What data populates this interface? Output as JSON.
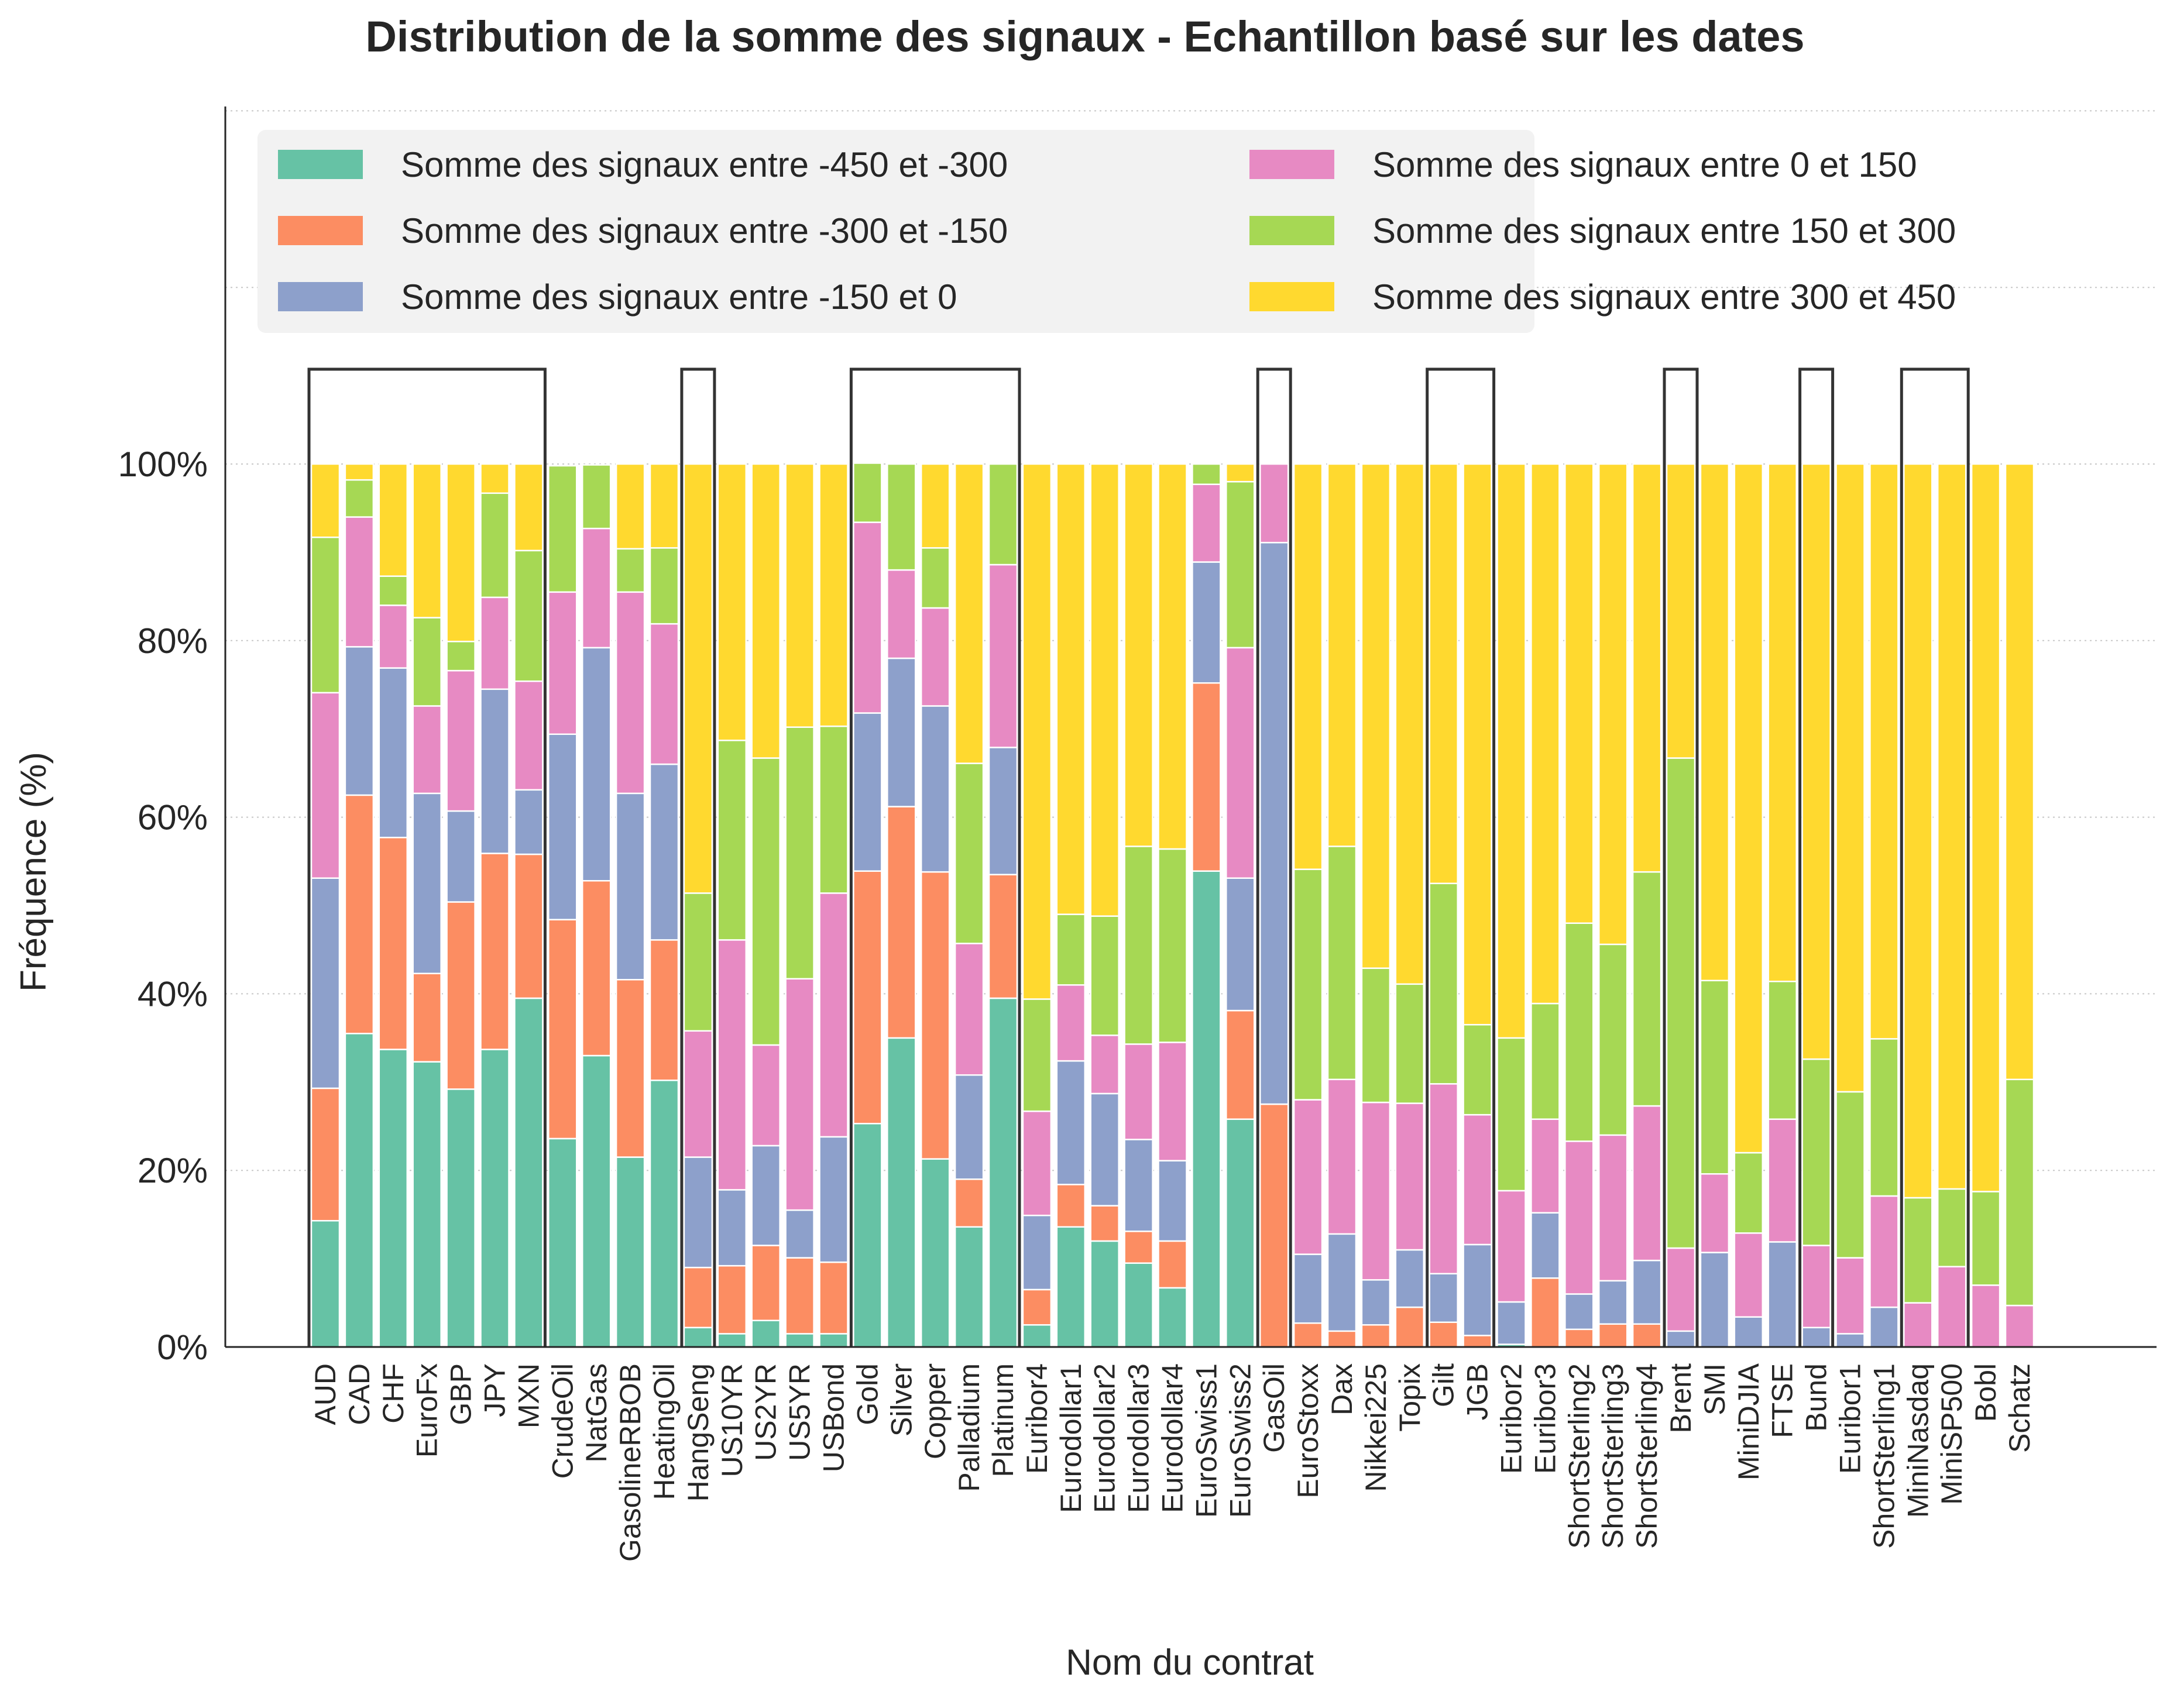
{
  "chart_data": {
    "type": "bar",
    "stacked": true,
    "title": "Distribution de la somme des signaux - Echantillon basé sur les dates",
    "xlabel": "Nom du contrat",
    "ylabel": "Fréquence (%)",
    "ylim": [
      0,
      100
    ],
    "yticks": [
      "0%",
      "20%",
      "40%",
      "60%",
      "80%",
      "100%"
    ],
    "grid": "horizontal-dotted",
    "legend_position": "top",
    "categories": [
      "AUD",
      "CAD",
      "CHF",
      "EuroFx",
      "GBP",
      "JPY",
      "MXN",
      "CrudeOil",
      "NatGas",
      "GasolineRBOB",
      "HeatingOil",
      "HangSeng",
      "US10YR",
      "US2YR",
      "US5YR",
      "USBond",
      "Gold",
      "Silver",
      "Copper",
      "Palladium",
      "Platinum",
      "Euribor4",
      "Eurodollar1",
      "Eurodollar2",
      "Eurodollar3",
      "Eurodollar4",
      "EuroSwiss1",
      "EuroSwiss2",
      "GasOil",
      "EuroStoxx",
      "Dax",
      "Nikkei225",
      "Topix",
      "Gilt",
      "JGB",
      "Euribor2",
      "Euribor3",
      "ShortSterling2",
      "ShortSterling3",
      "ShortSterling4",
      "Brent",
      "SMI",
      "MiniDJIA",
      "FTSE",
      "Bund",
      "Euribor1",
      "ShortSterling1",
      "MiniNasdaq",
      "MiniSP500",
      "Bobl",
      "Schatz"
    ],
    "series": [
      {
        "name": "Somme des signaux entre -450 et -300",
        "color": "#66c2a5",
        "values": [
          14.3,
          35.5,
          33.7,
          32.3,
          29.2,
          33.7,
          39.5,
          23.6,
          33,
          21.5,
          30.2,
          2.2,
          1.5,
          3,
          1.5,
          1.5,
          25.3,
          35,
          21.3,
          13.6,
          39.5,
          2.5,
          13.6,
          12,
          9.5,
          6.7,
          53.9,
          25.8,
          0,
          0,
          0,
          0,
          0,
          0,
          0,
          0.3,
          0,
          0,
          0,
          0,
          0,
          0,
          0,
          0,
          0,
          0,
          0,
          0,
          0,
          0,
          0
        ]
      },
      {
        "name": "Somme des signaux entre -300 et -150",
        "color": "#fc8d62",
        "values": [
          15,
          27,
          24,
          10,
          21.2,
          22.2,
          16.3,
          24.8,
          19.8,
          20.1,
          15.9,
          6.8,
          7.7,
          8.5,
          8.6,
          8.1,
          28.6,
          26.2,
          32.5,
          5.4,
          14,
          4,
          4.8,
          4,
          3.6,
          5.3,
          21.3,
          12.3,
          27.5,
          2.7,
          1.8,
          2.5,
          4.5,
          2.8,
          1.3,
          0,
          7.8,
          2,
          2.6,
          2.6,
          0,
          0,
          0,
          0,
          0,
          0,
          0,
          0,
          0,
          0,
          0
        ]
      },
      {
        "name": "Somme des signaux entre -150 et 0",
        "color": "#8da0cb",
        "values": [
          23.8,
          16.8,
          19.2,
          20.4,
          10.3,
          18.6,
          7.3,
          21,
          26.4,
          21.1,
          19.9,
          12.5,
          8.6,
          11.3,
          5.4,
          14.2,
          17.9,
          16.8,
          18.8,
          11.8,
          14.4,
          8.4,
          14,
          12.7,
          10.4,
          9.1,
          13.7,
          15,
          63.6,
          7.8,
          11,
          5.1,
          6.5,
          5.5,
          10.3,
          4.8,
          7.4,
          4,
          4.9,
          7.2,
          1.8,
          10.7,
          3.4,
          11.9,
          2.2,
          1.5,
          4.5,
          0,
          0,
          0,
          0
        ]
      },
      {
        "name": "Somme des signaux entre 0 et 150",
        "color": "#e78ac3",
        "values": [
          21,
          14.7,
          7.1,
          9.9,
          15.9,
          10.4,
          12.3,
          16.1,
          13.5,
          22.8,
          15.9,
          14.3,
          28.3,
          11.4,
          26.2,
          27.6,
          21.6,
          10,
          11.1,
          14.9,
          20.7,
          11.8,
          8.6,
          6.6,
          10.8,
          13.4,
          8.8,
          26.1,
          8.9,
          17.5,
          17.5,
          20.1,
          16.6,
          21.5,
          14.7,
          12.6,
          10.6,
          17.3,
          16.5,
          17.5,
          9.4,
          8.9,
          9.5,
          13.9,
          9.3,
          8.6,
          12.6,
          5,
          9.1,
          7,
          4.7
        ]
      },
      {
        "name": "Somme des signaux entre 150 et 300",
        "color": "#a6d854",
        "values": [
          17.6,
          4.2,
          3.3,
          10,
          3.3,
          11.8,
          14.8,
          14.3,
          7.2,
          4.9,
          8.6,
          15.6,
          22.6,
          32.5,
          28.5,
          18.9,
          6.7,
          12,
          6.8,
          20.4,
          11.4,
          12.7,
          8,
          13.5,
          22.4,
          21.9,
          2.3,
          18.8,
          0,
          26.1,
          26.4,
          15.2,
          13.5,
          22.7,
          10.2,
          17.3,
          13.1,
          24.7,
          21.6,
          26.5,
          55.5,
          21.9,
          9.1,
          15.6,
          21.1,
          18.8,
          17.8,
          11.9,
          8.8,
          10.6,
          25.6
        ]
      },
      {
        "name": "Somme des signaux entre 300 et 450",
        "color": "#ffd92f",
        "values": [
          8.3,
          1.8,
          12.7,
          17.4,
          20.1,
          3.3,
          9.8,
          0,
          0,
          9.6,
          9.5,
          48.6,
          31.3,
          33.3,
          29.8,
          29.7,
          0,
          0,
          9.5,
          33.9,
          0,
          60.6,
          51,
          51.2,
          43.3,
          43.6,
          0,
          2,
          0,
          45.9,
          43.3,
          57.1,
          58.9,
          47.5,
          63.5,
          65,
          61.1,
          52,
          54.4,
          46.2,
          33.3,
          58.5,
          78,
          58.6,
          67.4,
          71.1,
          65.1,
          83.1,
          82.1,
          82.4,
          69.7
        ]
      }
    ],
    "group_brackets": [
      [
        "AUD",
        "MXN"
      ],
      [
        "HangSeng",
        "HangSeng"
      ],
      [
        "Gold",
        "Platinum"
      ],
      [
        "GasOil",
        "GasOil"
      ],
      [
        "Gilt",
        "JGB"
      ],
      [
        "Brent",
        "Brent"
      ],
      [
        "Bund",
        "Bund"
      ],
      [
        "MiniNasdaq",
        "MiniSP500"
      ]
    ]
  }
}
